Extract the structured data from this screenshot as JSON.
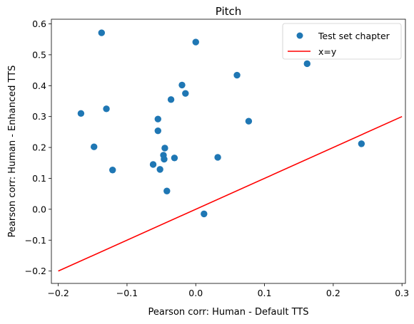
{
  "chart_data": {
    "type": "scatter",
    "title": "Pitch",
    "xlabel": "Pearson corr: Human - Default TTS",
    "ylabel": "Pearson corr: Human - Enhanced TTS",
    "xlim": [
      -0.21,
      0.305
    ],
    "ylim": [
      -0.24,
      0.615
    ],
    "xticks": [
      -0.2,
      -0.1,
      0.0,
      0.1,
      0.2,
      0.3
    ],
    "xtick_labels": [
      "−0.2",
      "−0.1",
      "0.0",
      "0.1",
      "0.2",
      "0.3"
    ],
    "yticks": [
      -0.2,
      -0.1,
      0.0,
      0.1,
      0.2,
      0.3,
      0.4,
      0.5,
      0.6
    ],
    "ytick_labels": [
      "−0.2",
      "−0.1",
      "0.0",
      "0.1",
      "0.2",
      "0.3",
      "0.4",
      "0.5",
      "0.6"
    ],
    "grid": false,
    "legend_position": "top-right",
    "series": [
      {
        "name": "Test set chapter",
        "kind": "scatter",
        "color": "#1f77b4",
        "points": [
          [
            -0.137,
            0.571
          ],
          [
            0.0,
            0.541
          ],
          [
            0.162,
            0.471
          ],
          [
            0.06,
            0.434
          ],
          [
            -0.02,
            0.402
          ],
          [
            -0.015,
            0.375
          ],
          [
            -0.036,
            0.355
          ],
          [
            -0.13,
            0.325
          ],
          [
            -0.167,
            0.31
          ],
          [
            -0.055,
            0.292
          ],
          [
            0.077,
            0.285
          ],
          [
            -0.055,
            0.254
          ],
          [
            0.241,
            0.212
          ],
          [
            -0.148,
            0.202
          ],
          [
            -0.045,
            0.198
          ],
          [
            -0.047,
            0.175
          ],
          [
            0.032,
            0.168
          ],
          [
            -0.031,
            0.166
          ],
          [
            -0.046,
            0.162
          ],
          [
            -0.062,
            0.145
          ],
          [
            -0.052,
            0.129
          ],
          [
            -0.121,
            0.127
          ],
          [
            -0.042,
            0.059
          ],
          [
            0.012,
            -0.015
          ]
        ]
      },
      {
        "name": "x=y",
        "kind": "line",
        "color": "#ff0000",
        "x": [
          -0.2,
          0.3
        ],
        "y": [
          -0.2,
          0.3
        ]
      }
    ]
  }
}
